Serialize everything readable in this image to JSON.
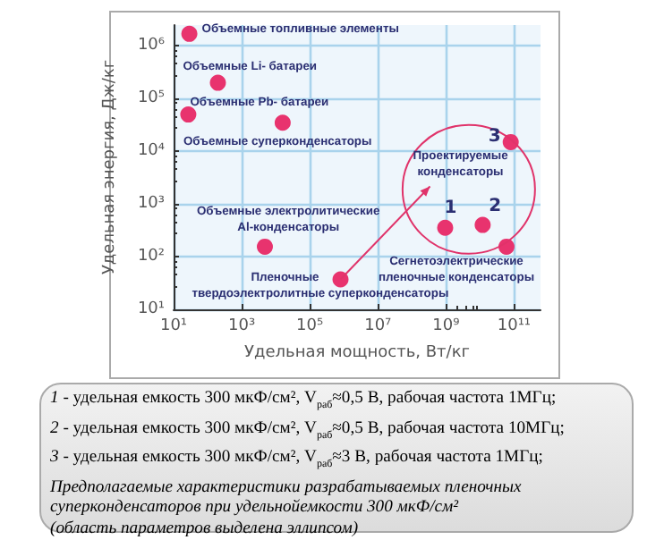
{
  "chart_data": {
    "type": "scatter",
    "xlabel": "Удельная мощность, Вт/кг",
    "ylabel": "Удельная энергия, Дж/кг",
    "x": [
      29,
      200,
      27,
      16000,
      4800,
      800000,
      950000000,
      12000000000,
      80000000000,
      60000000000
    ],
    "series": [
      {
        "color": "#e8336e",
        "values": [
          1700000,
          200000,
          50000,
          35000,
          155,
          37,
          355,
          400,
          15000,
          155
        ]
      }
    ],
    "log": "xy",
    "grid": true,
    "marker": "circle",
    "xlim": [
      10,
      600000000000
    ],
    "ylim": [
      10,
      2500000
    ],
    "xticks": [
      {
        "value": 10,
        "label": "10¹"
      },
      {
        "value": 1000,
        "label": "10³"
      },
      {
        "value": 100000,
        "label": "10⁵"
      },
      {
        "value": 10000000,
        "label": "10⁷"
      },
      {
        "value": 1000000000,
        "label": "10⁹"
      },
      {
        "value": 100000000000,
        "label": "10¹¹"
      }
    ],
    "yticks": [
      {
        "value": 10,
        "label": "10¹"
      },
      {
        "value": 100,
        "label": "10²"
      },
      {
        "value": 1000,
        "label": "10³"
      },
      {
        "value": 10000,
        "label": "10⁴"
      },
      {
        "value": 100000,
        "label": "10⁵"
      },
      {
        "value": 1000000,
        "label": "10⁶"
      }
    ],
    "annotations": [
      {
        "text": "Объемные топливные элементы",
        "x": 29,
        "y": 1700000
      },
      {
        "text": "Объемные Li- батареи",
        "x": 200,
        "y": 200000
      },
      {
        "text": "Объемные Pb- батареи",
        "x": 27,
        "y": 50000
      },
      {
        "text": "Объемные суперконденсаторы",
        "x": 16000,
        "y": 35000
      },
      {
        "text": "Объемные электролитические Al-конденсаторы",
        "x": 4800,
        "y": 155
      },
      {
        "text": "Пленочные твердоэлектролитные суперконденсаторы",
        "x": 800000,
        "y": 37
      },
      {
        "text": "Сегнетоэлектрические пленочные конденсаторы",
        "x": 60000000000,
        "y": 155
      },
      {
        "text": "1",
        "x": 950000000,
        "y": 355
      },
      {
        "text": "2",
        "x": 12000000000,
        "y": 400
      },
      {
        "text": "3",
        "x": 80000000000,
        "y": 15000
      },
      {
        "text": "Проектируемые конденсаторы",
        "x": 800000,
        "y": 37
      },
      "1 - удельная емкость 300 мкФ/см², V$_{раб}$≈0,5 В, рабочая частота 1МГц;",
      "2 - удельная емкость 300 мкФ/см², V$_{раб}$≈0,5 В, рабочая частота 10МГц;",
      "3 - удельная емкость 300 мкФ/см², V$_{раб}$≈3 В, рабочая частота 1МГц;",
      "Предполагаемые характеристики разрабатываемых пленочных суперконденсаторов при удельнойемкости 300 мкФ/см²",
      "(область параметров выделена эллипсом)"
    ]
  }
}
